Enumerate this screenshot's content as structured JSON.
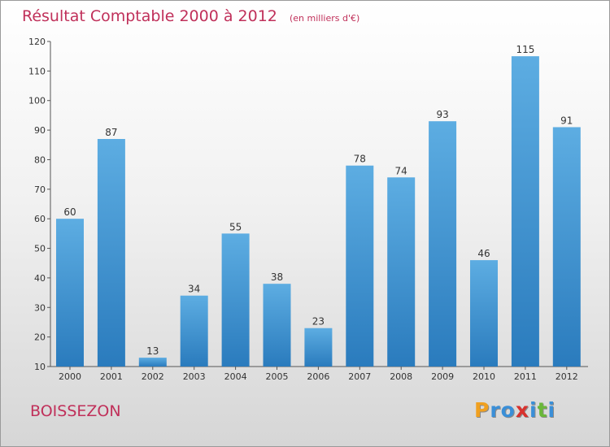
{
  "chart_data": {
    "type": "bar",
    "title": "Résultat Comptable 2000 à 2012",
    "subtitle": "(en milliers d'€)",
    "categories": [
      "2000",
      "2001",
      "2002",
      "2003",
      "2004",
      "2005",
      "2006",
      "2007",
      "2008",
      "2009",
      "2010",
      "2011",
      "2012"
    ],
    "values": [
      60,
      87,
      13,
      34,
      55,
      38,
      23,
      78,
      74,
      93,
      46,
      115,
      91
    ],
    "ylim": [
      10,
      120
    ],
    "yticks": [
      10,
      20,
      30,
      40,
      50,
      60,
      70,
      80,
      90,
      100,
      110,
      120
    ],
    "xlabel": "",
    "ylabel": "",
    "grid": false,
    "bar_color_top": "#5dade2",
    "bar_color_bottom": "#2a7bbd"
  },
  "location": "BOISSEZON",
  "logo": {
    "text": "Proxiti",
    "letters": [
      {
        "ch": "P",
        "color": "#f0a020"
      },
      {
        "ch": "r",
        "color": "#3a8fd8"
      },
      {
        "ch": "o",
        "color": "#3a8fd8"
      },
      {
        "ch": "x",
        "color": "#d8322e"
      },
      {
        "ch": "i",
        "color": "#3a8fd8"
      },
      {
        "ch": "t",
        "color": "#6ab83a"
      },
      {
        "ch": "i",
        "color": "#3a8fd8"
      }
    ]
  }
}
